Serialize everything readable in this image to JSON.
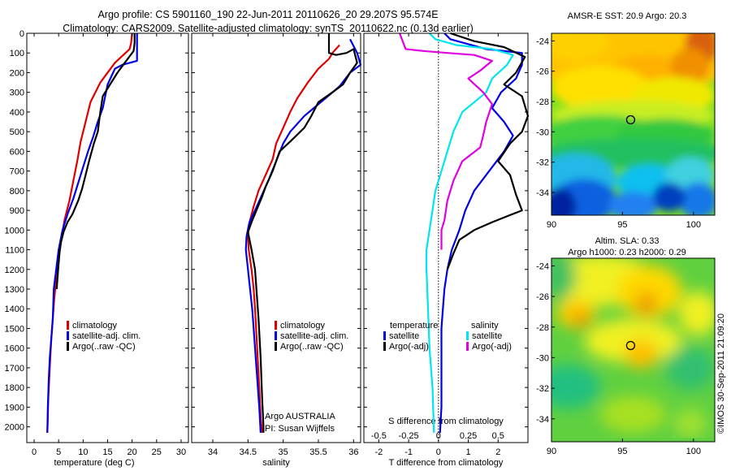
{
  "header": {
    "line1": "Argo profile: CS 5901160_190 22-Jun-2011 20110626_20 29.207S 95.574E",
    "line2": "Climatology: CARS2009. Satellite-adjusted climatology: synTS_20110622.nc (0.13d earlier)"
  },
  "colors": {
    "climatology": "#e00000",
    "satellite": "#0000e6",
    "argo": "#000000",
    "sat_salinity": "#00e5ee",
    "argo_salinity": "#e000e0"
  },
  "chart_data": [
    {
      "type": "line",
      "xlabel": "temperature (deg C)",
      "ylabel": "",
      "xlim": [
        -1.5,
        31.5
      ],
      "ylim": [
        2080,
        0
      ],
      "xticks": [
        0,
        5,
        10,
        15,
        20,
        25,
        30
      ],
      "yticks": [
        0,
        100,
        200,
        300,
        400,
        500,
        600,
        700,
        800,
        900,
        1000,
        1100,
        1200,
        1300,
        1400,
        1500,
        1600,
        1700,
        1800,
        1900,
        2000
      ],
      "legend": {
        "position": "lower-middle",
        "entries": [
          "climatology",
          "satellite-adj. clim.",
          "Argo(..raw -QC)"
        ]
      },
      "series": [
        {
          "name": "climatology",
          "color": "#e00000",
          "points": [
            [
              20,
              0
            ],
            [
              19.8,
              50
            ],
            [
              19.5,
              80
            ],
            [
              16.5,
              150
            ],
            [
              13.5,
              250
            ],
            [
              11.5,
              350
            ],
            [
              10.5,
              450
            ],
            [
              9.5,
              550
            ],
            [
              8.8,
              650
            ],
            [
              8,
              750
            ],
            [
              7.2,
              850
            ],
            [
              6.2,
              950
            ],
            [
              5.5,
              1050
            ],
            [
              5,
              1150
            ],
            [
              4.5,
              1250
            ],
            [
              4.1,
              1350
            ],
            [
              3.8,
              1450
            ],
            [
              3.5,
              1550
            ],
            [
              3.3,
              1650
            ],
            [
              3.1,
              1750
            ],
            [
              2.9,
              1850
            ],
            [
              2.8,
              1950
            ],
            [
              2.7,
              2030
            ]
          ]
        },
        {
          "name": "satellite-adj. clim.",
          "color": "#0000e6",
          "points": [
            [
              21,
              0
            ],
            [
              21,
              40
            ],
            [
              21,
              140
            ],
            [
              18,
              160
            ],
            [
              16.5,
              180
            ],
            [
              15,
              260
            ],
            [
              14,
              380
            ],
            [
              13,
              450
            ],
            [
              12,
              530
            ],
            [
              11,
              600
            ],
            [
              10,
              680
            ],
            [
              9,
              760
            ],
            [
              8,
              840
            ],
            [
              6.8,
              920
            ],
            [
              5.8,
              1000
            ],
            [
              5,
              1100
            ],
            [
              4.5,
              1200
            ],
            [
              4,
              1300
            ],
            [
              3.8,
              1450
            ],
            [
              3.5,
              1550
            ],
            [
              3.2,
              1650
            ],
            [
              3,
              1750
            ],
            [
              2.8,
              1900
            ],
            [
              2.7,
              2030
            ]
          ]
        },
        {
          "name": "Argo(..raw -QC)",
          "color": "#000000",
          "points": [
            [
              20.5,
              0
            ],
            [
              20.5,
              50
            ],
            [
              20.3,
              90
            ],
            [
              18.5,
              150
            ],
            [
              17,
              200
            ],
            [
              15.5,
              260
            ],
            [
              14,
              320
            ],
            [
              13.5,
              400
            ],
            [
              13,
              500
            ],
            [
              12.2,
              560
            ],
            [
              11.2,
              650
            ],
            [
              10.5,
              720
            ],
            [
              9.8,
              790
            ],
            [
              9,
              850
            ],
            [
              7.8,
              920
            ],
            [
              6.8,
              960
            ],
            [
              6,
              1010
            ],
            [
              5.5,
              1060
            ],
            [
              5.2,
              1110
            ],
            [
              4.9,
              1200
            ],
            [
              4.6,
              1300
            ]
          ]
        }
      ]
    },
    {
      "type": "line",
      "xlabel": "salinity",
      "ylabel": "",
      "xlim": [
        33.7,
        36.1
      ],
      "ylim": [
        2080,
        0
      ],
      "xticks": [
        34,
        34.5,
        35,
        35.5,
        36
      ],
      "legend": {
        "position": "lower-right",
        "entries": [
          "climatology",
          "satellite-adj. clim.",
          "Argo(..raw -QC)"
        ]
      },
      "annotations": [
        "Argo AUSTRALIA",
        "PI: Susan Wijffels"
      ],
      "series": [
        {
          "name": "climatology",
          "color": "#e00000",
          "points": [
            [
              35.8,
              60
            ],
            [
              35.7,
              100
            ],
            [
              35.65,
              130
            ],
            [
              35.5,
              180
            ],
            [
              35.35,
              250
            ],
            [
              35.2,
              330
            ],
            [
              35.1,
              400
            ],
            [
              35,
              480
            ],
            [
              34.9,
              560
            ],
            [
              34.85,
              640
            ],
            [
              34.75,
              720
            ],
            [
              34.65,
              800
            ],
            [
              34.58,
              880
            ],
            [
              34.53,
              950
            ],
            [
              34.5,
              1020
            ],
            [
              34.51,
              1100
            ],
            [
              34.55,
              1200
            ],
            [
              34.58,
              1300
            ],
            [
              34.6,
              1400
            ],
            [
              34.63,
              1600
            ],
            [
              34.66,
              1800
            ],
            [
              34.68,
              1950
            ],
            [
              34.7,
              2030
            ]
          ]
        },
        {
          "name": "satellite-adj. clim.",
          "color": "#0000e6",
          "points": [
            [
              35.95,
              30
            ],
            [
              36.05,
              100
            ],
            [
              36.1,
              160
            ],
            [
              35.95,
              200
            ],
            [
              35.8,
              270
            ],
            [
              35.6,
              330
            ],
            [
              35.3,
              420
            ],
            [
              35.1,
              500
            ],
            [
              35,
              560
            ],
            [
              34.9,
              650
            ],
            [
              34.8,
              740
            ],
            [
              34.7,
              820
            ],
            [
              34.6,
              900
            ],
            [
              34.52,
              960
            ],
            [
              34.48,
              1030
            ],
            [
              34.47,
              1100
            ],
            [
              34.5,
              1200
            ],
            [
              34.53,
              1300
            ],
            [
              34.56,
              1400
            ],
            [
              34.58,
              1500
            ],
            [
              34.6,
              1600
            ],
            [
              34.63,
              1750
            ],
            [
              34.66,
              1900
            ],
            [
              34.68,
              2030
            ]
          ]
        },
        {
          "name": "Argo(..raw -QC)",
          "color": "#000000",
          "points": [
            [
              35.65,
              0
            ],
            [
              35.65,
              100
            ],
            [
              35.75,
              110
            ],
            [
              35.9,
              100
            ],
            [
              36,
              80
            ],
            [
              36.05,
              150
            ],
            [
              35.95,
              200
            ],
            [
              35.85,
              260
            ],
            [
              35.7,
              300
            ],
            [
              35.5,
              350
            ],
            [
              35.4,
              420
            ],
            [
              35.3,
              480
            ],
            [
              35.1,
              550
            ],
            [
              34.95,
              600
            ],
            [
              34.85,
              700
            ],
            [
              34.75,
              780
            ],
            [
              34.7,
              830
            ],
            [
              34.62,
              900
            ],
            [
              34.55,
              960
            ],
            [
              34.5,
              1010
            ],
            [
              34.55,
              1100
            ],
            [
              34.6,
              1200
            ],
            [
              34.62,
              1300
            ],
            [
              34.65,
              1450
            ],
            [
              34.68,
              1650
            ],
            [
              34.7,
              1850
            ],
            [
              34.72,
              2000
            ],
            [
              34.72,
              2030
            ]
          ]
        }
      ]
    },
    {
      "type": "line",
      "xlabel": "T difference from climatology",
      "ylabel": "",
      "xlim": [
        -2.5,
        3
      ],
      "ylim": [
        2080,
        0
      ],
      "xticks": [
        -2,
        -1,
        0,
        1,
        2
      ],
      "top_xlabel": "S difference from climatology",
      "top_xticks": [
        -0.5,
        -0.25,
        0,
        0.25,
        0.5
      ],
      "legend": {
        "position": "lower-left",
        "entries": [
          "temperature",
          "satellite",
          "Argo(-adj)",
          "salinity",
          "satellite",
          "Argo(-adj)"
        ]
      },
      "series": [
        {
          "name": "satellite",
          "group": "temperature",
          "color": "#0000e6",
          "points": [
            [
              0.2,
              0
            ],
            [
              0.4,
              30
            ],
            [
              1.6,
              80
            ],
            [
              2.8,
              100
            ],
            [
              2.8,
              160
            ],
            [
              2.6,
              230
            ],
            [
              2.1,
              300
            ],
            [
              1.8,
              380
            ],
            [
              2.2,
              450
            ],
            [
              2.5,
              520
            ],
            [
              2.2,
              600
            ],
            [
              1.7,
              700
            ],
            [
              1.2,
              800
            ],
            [
              0.9,
              900
            ],
            [
              0.7,
              1000
            ],
            [
              0.45,
              1100
            ],
            [
              0.3,
              1200
            ],
            [
              0.2,
              1300
            ],
            [
              0.15,
              1400
            ],
            [
              0.1,
              1500
            ],
            [
              0.1,
              1700
            ],
            [
              0.1,
              1900
            ],
            [
              0.05,
              2030
            ]
          ]
        },
        {
          "name": "Argo(-adj)",
          "group": "temperature",
          "color": "#000000",
          "points": [
            [
              0.4,
              0
            ],
            [
              1.2,
              40
            ],
            [
              2.2,
              70
            ],
            [
              2.9,
              120
            ],
            [
              2.6,
              200
            ],
            [
              2.2,
              260
            ],
            [
              2.8,
              320
            ],
            [
              3,
              420
            ],
            [
              2.8,
              500
            ],
            [
              2.4,
              560
            ],
            [
              2,
              650
            ],
            [
              2.4,
              720
            ],
            [
              2.6,
              820
            ],
            [
              2.8,
              900
            ],
            [
              1.8,
              960
            ],
            [
              1.2,
              1000
            ],
            [
              0.7,
              1050
            ],
            [
              0.5,
              1120
            ],
            [
              0.3,
              1200
            ]
          ]
        },
        {
          "name": "satellite",
          "group": "salinity",
          "color": "#00e5ee",
          "points": [
            [
              -0.3,
              0
            ],
            [
              -0.1,
              30
            ],
            [
              0.6,
              60
            ],
            [
              1.8,
              80
            ],
            [
              2.5,
              110
            ],
            [
              2.3,
              160
            ],
            [
              1.8,
              230
            ],
            [
              1.6,
              300
            ],
            [
              1.2,
              350
            ],
            [
              0.8,
              400
            ],
            [
              0.5,
              500
            ],
            [
              0.3,
              600
            ],
            [
              0.1,
              700
            ],
            [
              -0.1,
              800
            ],
            [
              -0.2,
              900
            ],
            [
              -0.3,
              1000
            ],
            [
              -0.4,
              1100
            ],
            [
              -0.4,
              1200
            ],
            [
              -0.35,
              1400
            ],
            [
              -0.3,
              1600
            ],
            [
              -0.2,
              1800
            ],
            [
              -0.15,
              2030
            ]
          ]
        },
        {
          "name": "Argo(-adj)",
          "group": "salinity",
          "color": "#e000e0",
          "points": [
            [
              -1.3,
              0
            ],
            [
              -1.1,
              80
            ],
            [
              -0.5,
              90
            ],
            [
              0.3,
              100
            ],
            [
              1.2,
              110
            ],
            [
              1.8,
              140
            ],
            [
              1.4,
              190
            ],
            [
              1,
              230
            ],
            [
              1.5,
              300
            ],
            [
              1.8,
              360
            ],
            [
              1.6,
              450
            ],
            [
              1.5,
              520
            ],
            [
              1.4,
              580
            ],
            [
              0.8,
              650
            ],
            [
              0.5,
              750
            ],
            [
              0.3,
              850
            ],
            [
              0.2,
              950
            ],
            [
              0.1,
              1000
            ],
            [
              0.1,
              1100
            ]
          ]
        }
      ]
    },
    {
      "type": "heatmap",
      "title": "AMSR-E SST: 20.9 Argo: 20.3",
      "xlim": [
        90,
        101.5
      ],
      "ylim": [
        -35.5,
        -23.5
      ],
      "xticks": [
        90,
        95,
        100
      ],
      "yticks": [
        -24,
        -26,
        -28,
        -30,
        -32,
        -34
      ],
      "marker": {
        "lon": 95.574,
        "lat": -29.207
      }
    },
    {
      "type": "heatmap",
      "title": "Altim. SLA: 0.33",
      "subtitle": "Argo h1000: 0.23 h2000: 0.29",
      "xlim": [
        90,
        101.5
      ],
      "ylim": [
        -35.5,
        -23.5
      ],
      "xticks": [
        90,
        95,
        100
      ],
      "yticks": [
        -24,
        -26,
        -28,
        -30,
        -32,
        -34
      ],
      "marker": {
        "lon": 95.574,
        "lat": -29.207
      }
    }
  ],
  "watermark": "©IMOS 30-Sep-2011 21:09:20"
}
